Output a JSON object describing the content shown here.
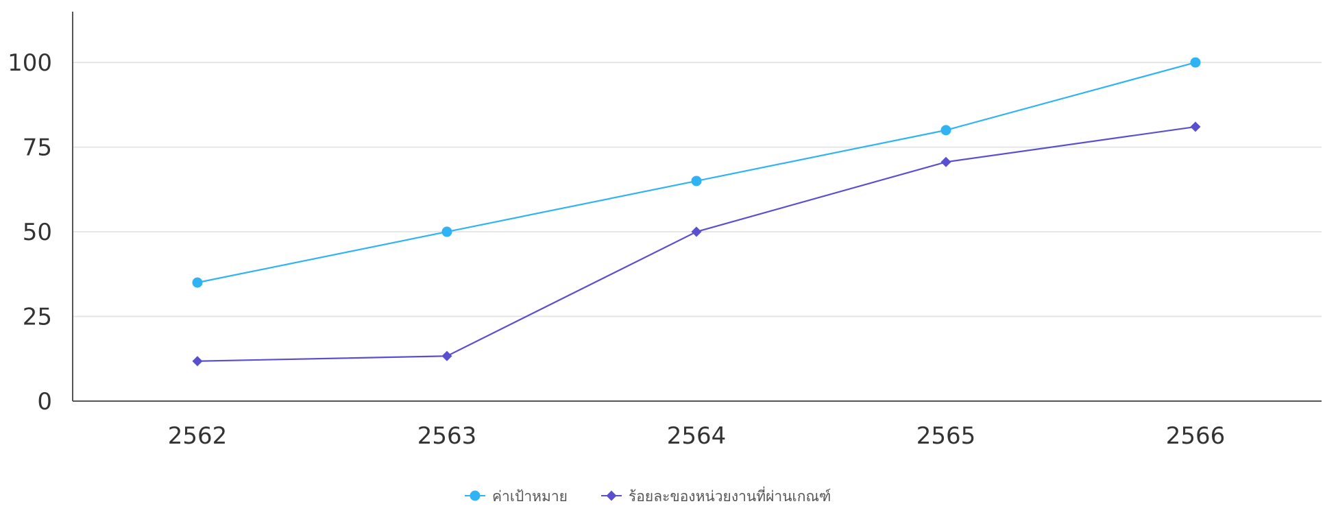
{
  "chart_data": {
    "type": "line",
    "title": "",
    "xlabel": "",
    "ylabel": "",
    "categories": [
      "2562",
      "2563",
      "2564",
      "2565",
      "2566"
    ],
    "ylim": [
      0,
      115
    ],
    "yticks": [
      0,
      25,
      50,
      75,
      100
    ],
    "grid": true,
    "legend_position": "bottom-center",
    "series": [
      {
        "name": "ค่าเป้าหมาย",
        "values": [
          35,
          50,
          65,
          80,
          100
        ],
        "color": "#2fb3f5",
        "marker": "circle"
      },
      {
        "name": "ร้อยละของหน่วยงานที่ผ่านเกณฑ์",
        "values": [
          11.8,
          13.3,
          50,
          70.6,
          81
        ],
        "color": "#5a4fcf",
        "marker": "diamond"
      }
    ]
  }
}
